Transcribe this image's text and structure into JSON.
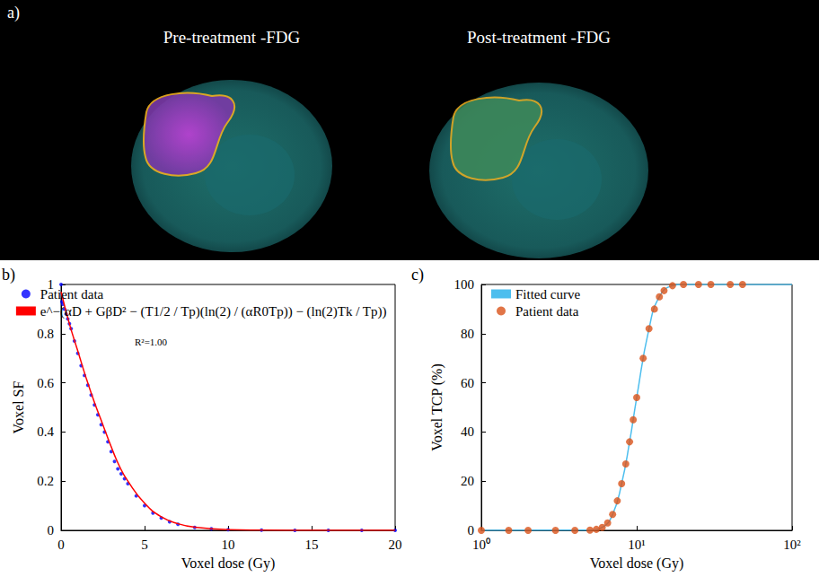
{
  "image_panel": {
    "panel_label": "a)",
    "titles": [
      "Pre-treatment -FDG",
      "Post-treatment -FDG"
    ]
  },
  "chart_data": [
    {
      "type": "scatter",
      "panel_label": "b)",
      "x_label": "Voxel dose (Gy)",
      "y_label": "Voxel SF",
      "xlim": [
        0,
        20
      ],
      "xticks": [
        0,
        5,
        10,
        15,
        20
      ],
      "ylim": [
        0,
        1
      ],
      "yticks": [
        0,
        0.2,
        0.4,
        0.6,
        0.8,
        1
      ],
      "grid": false,
      "legend": "upper right",
      "annotations": [
        "R²=1.00"
      ],
      "series": [
        {
          "name": "Patient data",
          "type": "scatter",
          "marker": "circle",
          "color": "#0000ff",
          "x": [
            0,
            0.05,
            0.1,
            0.2,
            0.3,
            0.4,
            0.5,
            0.6,
            0.8,
            1,
            1.2,
            1.4,
            1.6,
            1.8,
            2,
            2.2,
            2.4,
            2.6,
            2.8,
            3,
            3.2,
            3.4,
            3.6,
            3.8,
            4,
            4.5,
            5,
            5.5,
            6,
            6.5,
            7,
            8,
            9,
            10,
            12,
            14,
            16,
            18,
            20
          ],
          "values": [
            1,
            0.93,
            0.92,
            0.9,
            0.88,
            0.86,
            0.84,
            0.82,
            0.77,
            0.72,
            0.67,
            0.63,
            0.59,
            0.55,
            0.51,
            0.47,
            0.43,
            0.4,
            0.36,
            0.32,
            0.28,
            0.25,
            0.23,
            0.21,
            0.19,
            0.14,
            0.1,
            0.07,
            0.05,
            0.035,
            0.025,
            0.012,
            0.006,
            0.003,
            0.001,
            0,
            0,
            0,
            0
          ]
        },
        {
          "name": "e^−(αD + GβD² − (T1/2 / Tp)(ln(2) / (αR0Tp)) − (ln(2)Tk / Tp))",
          "type": "line",
          "line_style": "solid",
          "color": "#ff0000",
          "x": [
            0,
            0.5,
            1,
            1.5,
            2,
            2.5,
            3,
            3.5,
            4,
            5,
            6,
            7,
            8,
            10,
            12,
            15,
            20
          ],
          "values": [
            0.97,
            0.84,
            0.73,
            0.62,
            0.52,
            0.43,
            0.34,
            0.26,
            0.2,
            0.11,
            0.055,
            0.027,
            0.013,
            0.003,
            0.001,
            0,
            0
          ]
        }
      ]
    },
    {
      "type": "scatter",
      "panel_label": "c)",
      "x_label": "Voxel dose (Gy)",
      "y_label": "Voxel TCP (%)",
      "log": "x",
      "xlim": [
        1,
        100
      ],
      "xticks": [
        {
          "value": 1,
          "label": "10⁰"
        },
        {
          "value": 10,
          "label": "10¹"
        },
        {
          "value": 100,
          "label": "10²"
        }
      ],
      "ylim": [
        0,
        100
      ],
      "yticks": [
        0,
        20,
        40,
        60,
        80,
        100
      ],
      "grid": false,
      "legend": "upper left",
      "series": [
        {
          "name": "Fitted curve",
          "type": "line",
          "line_style": "solid",
          "color": "#4dbeee",
          "x": [
            1,
            5,
            6,
            7,
            8,
            9,
            10,
            12,
            14,
            17,
            20,
            30,
            50,
            70,
            100
          ],
          "values": [
            0,
            0.1,
            1.2,
            6.5,
            19,
            36,
            54,
            82,
            95,
            99.5,
            100,
            100,
            100,
            100,
            100
          ]
        },
        {
          "name": "Patient data",
          "type": "scatter",
          "marker": "circle",
          "color": "#d95319",
          "x": [
            1,
            1.5,
            2,
            3,
            4,
            5,
            5.5,
            6,
            6.5,
            7,
            7.5,
            8,
            8.5,
            9,
            9.5,
            10,
            11,
            12,
            13,
            14,
            15,
            17,
            20,
            25,
            30,
            40,
            48
          ],
          "values": [
            0,
            0,
            0,
            0,
            0,
            0.1,
            0.4,
            1.2,
            3,
            6.5,
            12,
            19,
            27,
            36,
            45,
            54,
            70,
            82,
            90,
            95,
            97.5,
            99.5,
            100,
            100,
            100,
            100,
            100
          ]
        }
      ]
    }
  ]
}
